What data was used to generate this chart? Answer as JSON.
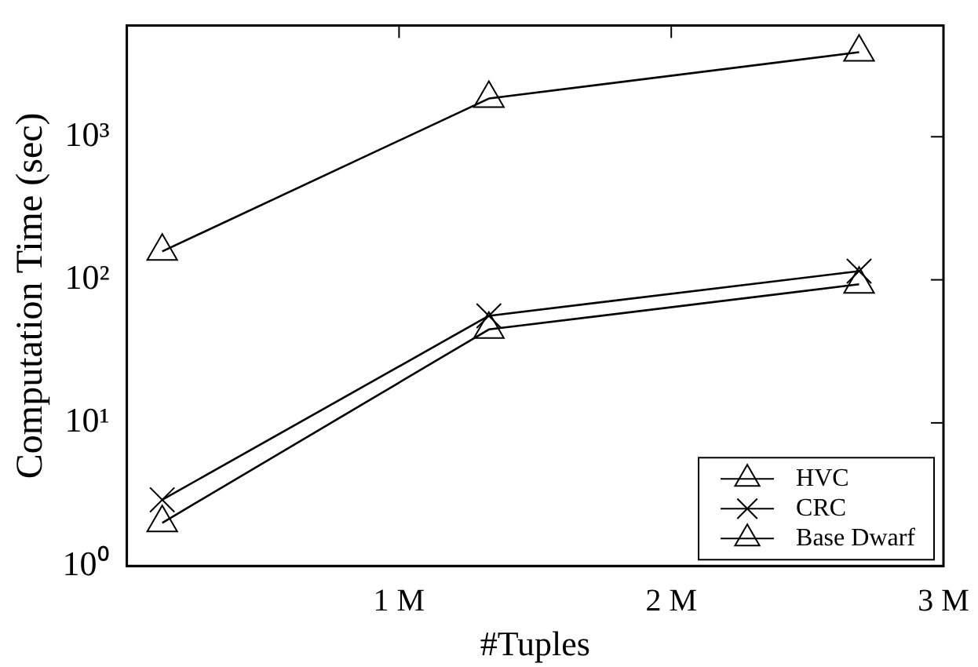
{
  "chart_data": {
    "type": "line",
    "xlabel": "#Tuples",
    "ylabel": "Computation Time (sec)",
    "log": "y",
    "grid": false,
    "legend": "bottom right",
    "line_style": "solid",
    "xlim": [
      0,
      3000000
    ],
    "xticks": [
      {
        "value": 1000000,
        "label": "1 M"
      },
      {
        "value": 2000000,
        "label": "2 M"
      },
      {
        "value": 3000000,
        "label": "3 M"
      }
    ],
    "ylim": [
      1,
      6000
    ],
    "yticks": [
      {
        "value": 1,
        "label": "10⁰"
      },
      {
        "value": 10,
        "label": "10¹"
      },
      {
        "value": 100,
        "label": "10²"
      },
      {
        "value": 1000,
        "label": "10³"
      }
    ],
    "x": [
      130000,
      1330000,
      2690000
    ],
    "series": [
      {
        "name": "HVC",
        "color": "#000000",
        "marker": "triangle",
        "values": [
          158,
          1850,
          3900
        ]
      },
      {
        "name": "CRC",
        "color": "#000000",
        "marker": "cross",
        "values": [
          2.9,
          56,
          115
        ]
      },
      {
        "name": "Base Dwarf",
        "color": "#000000",
        "marker": "triangle",
        "values": [
          2.0,
          45,
          93
        ]
      }
    ]
  }
}
